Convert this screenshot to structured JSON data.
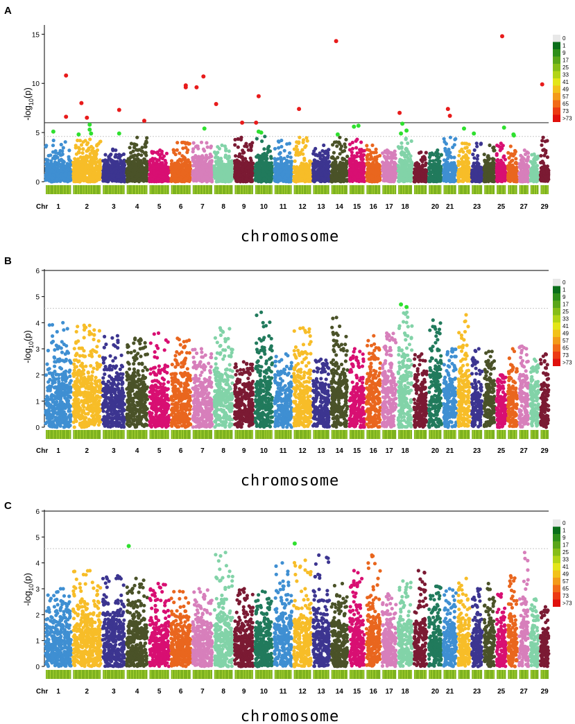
{
  "figure": {
    "panel_count": 3
  },
  "colors": {
    "chromosomes": [
      "#3f8fd2",
      "#f7bd28",
      "#3c3590",
      "#4a5228",
      "#d80f72",
      "#e9661e",
      "#d77fbb",
      "#82d3a8",
      "#7b1a33",
      "#217a5c"
    ],
    "significant_red": "#e81b1b",
    "significant_green": "#2fe02f",
    "chromosome_bar": "#7db21f",
    "threshold_line": "#333333",
    "suggestive_line": "#c8c8c8"
  },
  "legend": {
    "labels": [
      "0",
      "1",
      "9",
      "17",
      "25",
      "33",
      "41",
      "49",
      "57",
      "65",
      "73",
      ">73"
    ],
    "colors": [
      "#e8e8e8",
      "#0a6e1a",
      "#2f8f1a",
      "#5aa619",
      "#86bd17",
      "#b3d416",
      "#e3e518",
      "#f2c11a",
      "#f39a1a",
      "#f16a17",
      "#ec3a12",
      "#e0100c"
    ]
  },
  "chart_data": [
    {
      "type": "scatter",
      "panel_label": "A",
      "title": "",
      "xlabel": "chromosome",
      "ylabel_main": "-log",
      "ylabel_sub": "10",
      "ylabel_arg": "(p)",
      "chr_label": "Chr",
      "ylim": [
        0,
        15.8
      ],
      "yticks": [
        0,
        5,
        10,
        15
      ],
      "threshold": 6,
      "suggestive": 4.6,
      "chromosomes": [
        "1",
        "2",
        "3",
        "4",
        "5",
        "6",
        "7",
        "8",
        "9",
        "10",
        "11",
        "12",
        "13",
        "14",
        "15",
        "16",
        "17",
        "18",
        "19",
        "20",
        "21",
        "22",
        "23",
        "24",
        "25",
        "26",
        "27",
        "28",
        "29"
      ],
      "chromosome_ticks": [
        "1",
        "2",
        "3",
        "4",
        "5",
        "6",
        "7",
        "8",
        "9",
        "10",
        "11",
        "12",
        "13",
        "14",
        "15",
        "16",
        "17",
        "18",
        "20",
        "21",
        "23",
        "25",
        "27",
        "29"
      ],
      "chrom_max": [
        4.2,
        4.3,
        3.3,
        4.5,
        3.2,
        4.0,
        4.0,
        3.7,
        4.5,
        4.6,
        4.2,
        4.5,
        3.7,
        4.5,
        4.3,
        3.7,
        3.2,
        4.4,
        3.0,
        3.2,
        4.5,
        3.9,
        3.9,
        3.7,
        3.9,
        3.6,
        3.2,
        2.8,
        4.5
      ],
      "chrom_base": [
        2.1,
        2.8,
        2.0,
        2.5,
        1.9,
        2.1,
        2.4,
        2.0,
        2.3,
        2.3,
        2.0,
        2.0,
        2.3,
        2.2,
        2.5,
        2.2,
        2.4,
        2.6,
        1.6,
        2.0,
        2.4,
        2.4,
        1.8,
        2.1,
        2.1,
        1.9,
        2.0,
        1.9,
        1.9
      ],
      "significant": [
        {
          "chr": 1,
          "pos": 0.8,
          "y": 10.8,
          "sig": "red"
        },
        {
          "chr": 1,
          "pos": 0.8,
          "y": 6.6,
          "sig": "red"
        },
        {
          "chr": 1,
          "pos": 0.3,
          "y": 5.1,
          "sig": "green"
        },
        {
          "chr": 2,
          "pos": 0.3,
          "y": 8.0,
          "sig": "red"
        },
        {
          "chr": 2,
          "pos": 0.5,
          "y": 6.5,
          "sig": "red"
        },
        {
          "chr": 2,
          "pos": 0.6,
          "y": 5.8,
          "sig": "green"
        },
        {
          "chr": 2,
          "pos": 0.6,
          "y": 5.3,
          "sig": "green"
        },
        {
          "chr": 2,
          "pos": 0.65,
          "y": 4.9,
          "sig": "green"
        },
        {
          "chr": 2,
          "pos": 0.2,
          "y": 4.8,
          "sig": "green"
        },
        {
          "chr": 3,
          "pos": 0.75,
          "y": 7.3,
          "sig": "red"
        },
        {
          "chr": 3,
          "pos": 0.75,
          "y": 4.9,
          "sig": "green"
        },
        {
          "chr": 4,
          "pos": 0.85,
          "y": 6.2,
          "sig": "red"
        },
        {
          "chr": 6,
          "pos": 0.75,
          "y": 9.8,
          "sig": "red"
        },
        {
          "chr": 6,
          "pos": 0.75,
          "y": 9.6,
          "sig": "red"
        },
        {
          "chr": 7,
          "pos": 0.2,
          "y": 9.6,
          "sig": "red"
        },
        {
          "chr": 7,
          "pos": 0.55,
          "y": 10.7,
          "sig": "red"
        },
        {
          "chr": 7,
          "pos": 0.6,
          "y": 5.4,
          "sig": "green"
        },
        {
          "chr": 8,
          "pos": 0.1,
          "y": 7.9,
          "sig": "red"
        },
        {
          "chr": 9,
          "pos": 0.4,
          "y": 6.0,
          "sig": "red"
        },
        {
          "chr": 10,
          "pos": 0.05,
          "y": 6.0,
          "sig": "red"
        },
        {
          "chr": 10,
          "pos": 0.2,
          "y": 8.7,
          "sig": "red"
        },
        {
          "chr": 10,
          "pos": 0.2,
          "y": 5.1,
          "sig": "green"
        },
        {
          "chr": 10,
          "pos": 0.35,
          "y": 5.0,
          "sig": "green"
        },
        {
          "chr": 12,
          "pos": 0.3,
          "y": 7.4,
          "sig": "red"
        },
        {
          "chr": 14,
          "pos": 0.3,
          "y": 14.3,
          "sig": "red"
        },
        {
          "chr": 14,
          "pos": 0.4,
          "y": 4.8,
          "sig": "green"
        },
        {
          "chr": 15,
          "pos": 0.3,
          "y": 5.6,
          "sig": "green"
        },
        {
          "chr": 15,
          "pos": 0.6,
          "y": 5.7,
          "sig": "green"
        },
        {
          "chr": 18,
          "pos": 0.1,
          "y": 7.0,
          "sig": "red"
        },
        {
          "chr": 18,
          "pos": 0.3,
          "y": 5.9,
          "sig": "green"
        },
        {
          "chr": 18,
          "pos": 0.6,
          "y": 5.2,
          "sig": "green"
        },
        {
          "chr": 18,
          "pos": 0.2,
          "y": 4.9,
          "sig": "green"
        },
        {
          "chr": 21,
          "pos": 0.35,
          "y": 7.4,
          "sig": "red"
        },
        {
          "chr": 21,
          "pos": 0.5,
          "y": 6.7,
          "sig": "red"
        },
        {
          "chr": 22,
          "pos": 0.5,
          "y": 5.4,
          "sig": "green"
        },
        {
          "chr": 23,
          "pos": 0.2,
          "y": 4.9,
          "sig": "green"
        },
        {
          "chr": 25,
          "pos": 0.6,
          "y": 14.8,
          "sig": "red"
        },
        {
          "chr": 25,
          "pos": 0.8,
          "y": 5.5,
          "sig": "green"
        },
        {
          "chr": 26,
          "pos": 0.6,
          "y": 4.8,
          "sig": "green"
        },
        {
          "chr": 26,
          "pos": 0.65,
          "y": 4.7,
          "sig": "green"
        },
        {
          "chr": 29,
          "pos": 0.2,
          "y": 9.9,
          "sig": "red"
        }
      ]
    },
    {
      "type": "scatter",
      "panel_label": "B",
      "title": "",
      "xlabel": "chromosome",
      "ylabel_main": "-log",
      "ylabel_sub": "10",
      "ylabel_arg": "(p)",
      "chr_label": "Chr",
      "ylim": [
        0,
        6
      ],
      "yticks": [
        0,
        1,
        2,
        3,
        4,
        5,
        6
      ],
      "threshold": 6,
      "suggestive": 4.55,
      "chromosomes": [
        "1",
        "2",
        "3",
        "4",
        "5",
        "6",
        "7",
        "8",
        "9",
        "10",
        "11",
        "12",
        "13",
        "14",
        "15",
        "16",
        "17",
        "18",
        "19",
        "20",
        "21",
        "22",
        "23",
        "24",
        "25",
        "26",
        "27",
        "28",
        "29"
      ],
      "chromosome_ticks": [
        "1",
        "2",
        "3",
        "4",
        "5",
        "6",
        "7",
        "8",
        "9",
        "10",
        "11",
        "12",
        "13",
        "14",
        "15",
        "16",
        "17",
        "18",
        "20",
        "21",
        "23",
        "25",
        "27",
        "29"
      ],
      "chrom_max": [
        4.0,
        3.9,
        3.5,
        3.4,
        3.6,
        3.4,
        3.0,
        3.8,
        2.5,
        4.4,
        2.8,
        3.8,
        2.6,
        4.2,
        3.0,
        3.5,
        3.6,
        4.4,
        2.8,
        4.1,
        3.0,
        4.3,
        3.0,
        2.9,
        2.0,
        3.0,
        3.1,
        2.6,
        2.8
      ],
      "chrom_base": [
        2.5,
        2.7,
        2.2,
        2.4,
        2.0,
        2.4,
        2.2,
        2.6,
        2.0,
        2.8,
        2.0,
        2.6,
        2.1,
        2.7,
        2.1,
        2.6,
        2.7,
        2.9,
        2.0,
        2.9,
        2.2,
        2.6,
        2.0,
        2.2,
        1.7,
        2.1,
        2.3,
        2.1,
        2.0
      ],
      "significant": [
        {
          "chr": 18,
          "pos": 0.2,
          "y": 4.7,
          "sig": "green"
        },
        {
          "chr": 18,
          "pos": 0.6,
          "y": 4.6,
          "sig": "green"
        }
      ]
    },
    {
      "type": "scatter",
      "panel_label": "C",
      "title": "",
      "xlabel": "chromosome",
      "ylabel_main": "-log",
      "ylabel_sub": "10",
      "ylabel_arg": "(p)",
      "chr_label": "Chr",
      "ylim": [
        0,
        6
      ],
      "yticks": [
        0,
        1,
        2,
        3,
        4,
        5,
        6
      ],
      "threshold": 6,
      "suggestive": 4.55,
      "chromosomes": [
        "1",
        "2",
        "3",
        "4",
        "5",
        "6",
        "7",
        "8",
        "9",
        "10",
        "11",
        "12",
        "13",
        "14",
        "15",
        "16",
        "17",
        "18",
        "19",
        "20",
        "21",
        "22",
        "23",
        "24",
        "25",
        "26",
        "27",
        "28",
        "29"
      ],
      "chromosome_ticks": [
        "1",
        "2",
        "3",
        "4",
        "5",
        "6",
        "7",
        "8",
        "9",
        "10",
        "11",
        "12",
        "13",
        "14",
        "15",
        "16",
        "17",
        "18",
        "20",
        "21",
        "23",
        "25",
        "27",
        "29"
      ],
      "chrom_max": [
        3.0,
        3.7,
        3.5,
        3.4,
        3.2,
        2.9,
        3.0,
        4.4,
        3.0,
        2.9,
        4.0,
        4.1,
        4.3,
        3.2,
        3.7,
        4.3,
        2.8,
        3.3,
        3.7,
        3.1,
        3.0,
        3.4,
        3.0,
        3.2,
        2.8,
        3.5,
        4.4,
        2.6,
        2.3
      ],
      "chrom_base": [
        2.1,
        2.3,
        2.4,
        2.3,
        2.0,
        1.9,
        2.0,
        2.4,
        2.0,
        2.0,
        2.4,
        2.2,
        2.5,
        2.0,
        2.3,
        2.3,
        2.0,
        2.1,
        2.3,
        2.2,
        2.0,
        2.2,
        2.0,
        2.1,
        1.8,
        2.4,
        2.4,
        1.9,
        1.7
      ],
      "significant": [
        {
          "chr": 4,
          "pos": 0.1,
          "y": 4.65,
          "sig": "green"
        },
        {
          "chr": 12,
          "pos": 0.05,
          "y": 4.75,
          "sig": "green"
        }
      ]
    }
  ]
}
